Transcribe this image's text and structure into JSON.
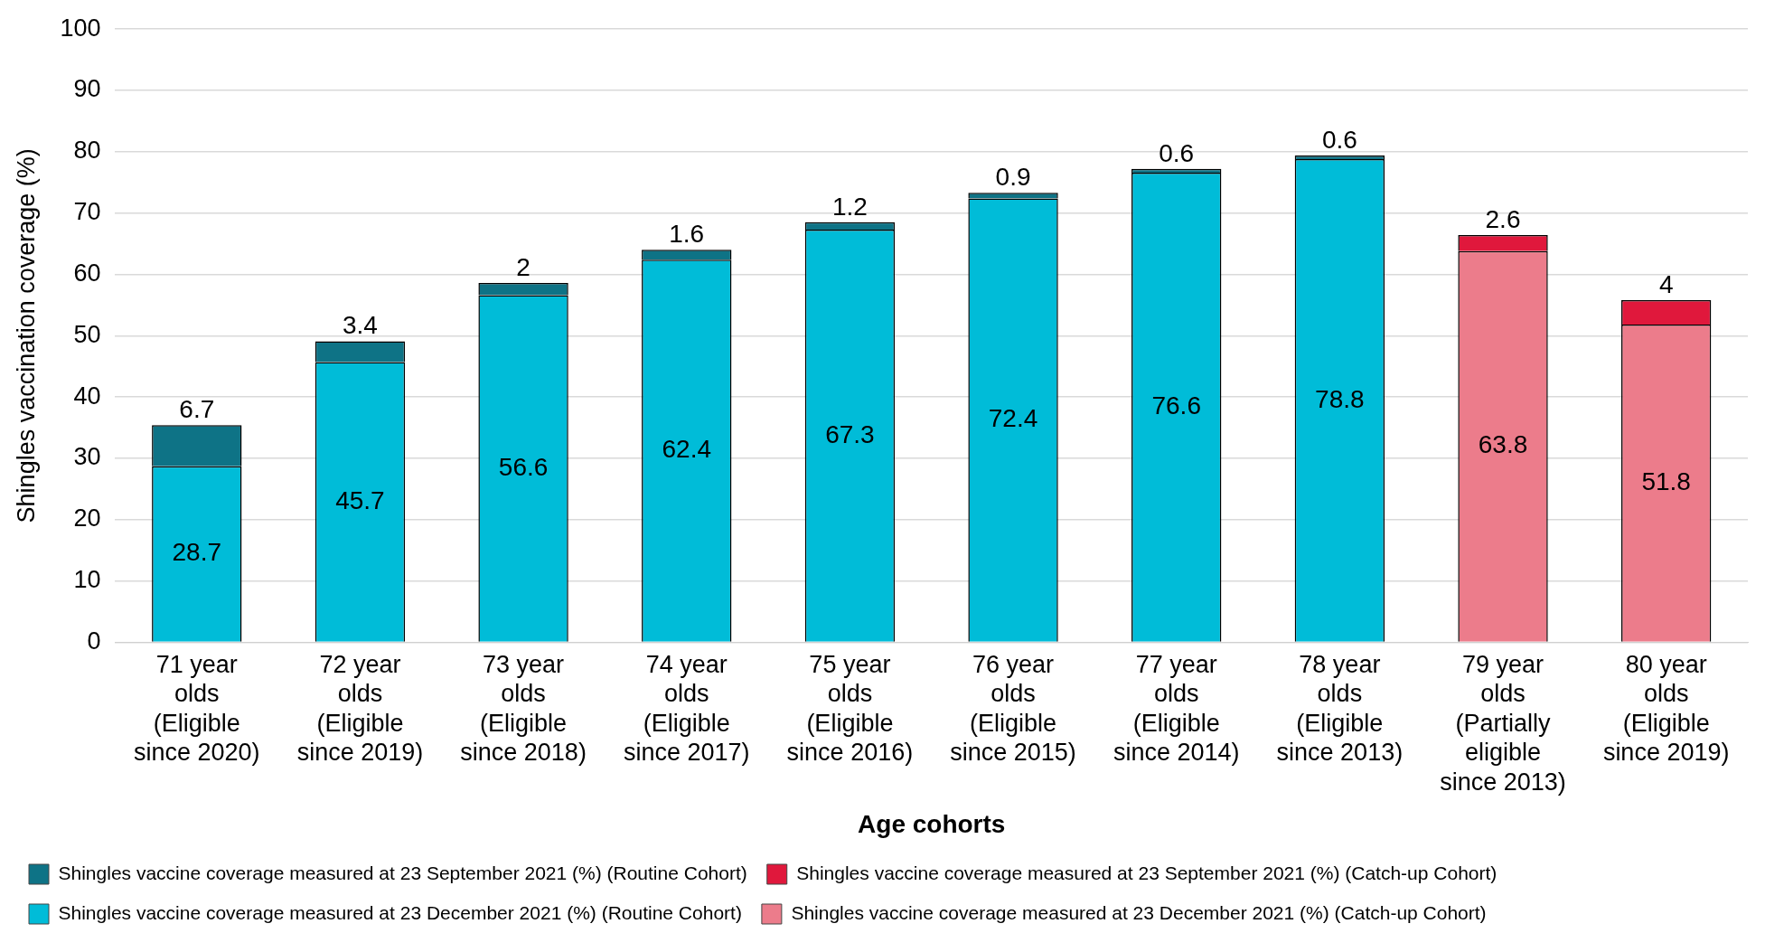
{
  "chart_data": {
    "type": "bar",
    "stacked": true,
    "xlabel": "Age cohorts",
    "ylabel": "Shingles vaccination coverage (%)",
    "categories": [
      "71 year olds (Eligible since 2020)",
      "72 year olds (Eligible since 2019)",
      "73 year olds (Eligible since 2018)",
      "74 year olds (Eligible since 2017)",
      "75 year olds (Eligible since 2016)",
      "76 year olds (Eligible since 2015)",
      "77 year olds (Eligible since 2014)",
      "78 year olds (Eligible since 2013)",
      "79 year olds (Partially eligible since 2013)",
      "80 year olds (Eligible since 2019)"
    ],
    "series": [
      {
        "name": "Shingles vaccine coverage measured at 23 December 2021 (%) (Routine Cohort)",
        "color": "#00bcd8",
        "values": [
          28.7,
          45.7,
          56.6,
          62.4,
          67.3,
          72.4,
          76.6,
          78.8,
          null,
          null
        ]
      },
      {
        "name": "Shingles vaccine coverage measured at 23 September 2021 (%) (Routine Cohort)",
        "color": "#0e7386",
        "values": [
          6.7,
          3.4,
          2,
          1.6,
          1.2,
          0.9,
          0.6,
          0.6,
          null,
          null
        ]
      },
      {
        "name": "Shingles vaccine coverage measured at 23 December 2021 (%) (Catch-up Cohort)",
        "color": "#ec7c8b",
        "values": [
          null,
          null,
          null,
          null,
          null,
          null,
          null,
          null,
          63.8,
          51.8
        ]
      },
      {
        "name": "Shingles vaccine coverage measured at 23 September 2021 (%) (Catch-up Cohort)",
        "color": "#e0183c",
        "values": [
          null,
          null,
          null,
          null,
          null,
          null,
          null,
          null,
          2.6,
          4
        ]
      }
    ],
    "ylim": [
      0,
      100
    ],
    "yticks": [
      0,
      10,
      20,
      30,
      40,
      50,
      60,
      70,
      80,
      90,
      100
    ],
    "grid": "y",
    "legend": "bottom",
    "data_labels": true
  }
}
